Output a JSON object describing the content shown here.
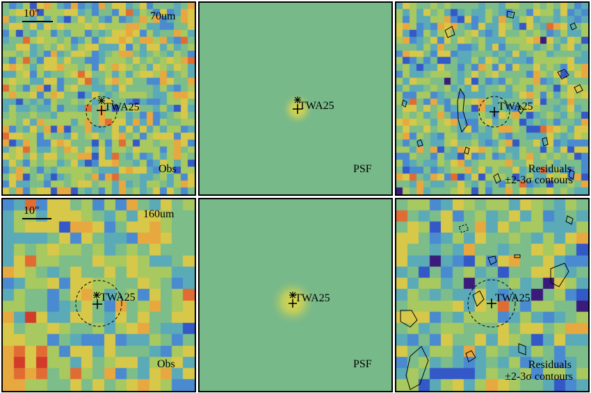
{
  "source_label": "TWA25",
  "scale_label": "10\"",
  "rows": [
    {
      "band": "70um",
      "seed": 7,
      "panels": [
        {
          "kind": "obs",
          "tag": "Obs"
        },
        {
          "kind": "psf",
          "tag": "PSF"
        },
        {
          "kind": "residual",
          "tag": "Residuals",
          "tag2": "±2-3σ contours"
        }
      ]
    },
    {
      "band": "160um",
      "seed": 23,
      "panels": [
        {
          "kind": "obs",
          "tag": "Obs"
        },
        {
          "kind": "psf",
          "tag": "PSF"
        },
        {
          "kind": "residual",
          "tag": "Residuals",
          "tag2": "±2-3σ contours"
        }
      ]
    }
  ],
  "colors": {
    "psf_background": "#78b98a",
    "psf_core": "#e3d84a",
    "palette": [
      "#3a1a7a",
      "#3358c8",
      "#4a8ad0",
      "#5aaab8",
      "#7cbd8a",
      "#a8c860",
      "#d7c84a",
      "#e8a840",
      "#e06c34",
      "#d23a2a"
    ]
  }
}
